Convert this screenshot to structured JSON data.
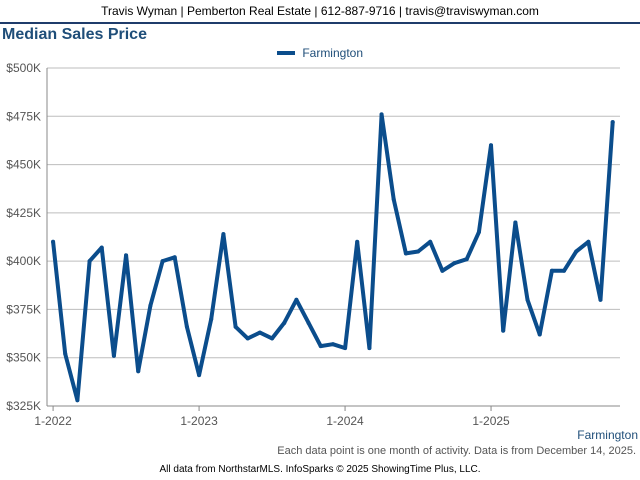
{
  "header": {
    "contact": "Travis Wyman | Pemberton Real Estate | 612-887-9716 | travis@traviswyman.com"
  },
  "footer": {
    "note": "Each data point is one month of activity. Data is from December 14, 2025.",
    "series_tag": "Farmington",
    "source": "All data from NorthstarMLS. InfoSparks © 2025 ShowingTime Plus, LLC."
  },
  "colors": {
    "series": "#0b4d8c",
    "title": "#1f4e79",
    "grid": "#bdbdbd",
    "axis_text": "#555555"
  },
  "chart_data": {
    "type": "line",
    "title": "Median Sales Price",
    "xlabel": "",
    "ylabel": "",
    "legend_position": "top-center",
    "grid": true,
    "ylim": [
      325000,
      500000
    ],
    "y_ticks": [
      325000,
      350000,
      375000,
      400000,
      425000,
      450000,
      475000,
      500000
    ],
    "y_tick_labels": [
      "$325K",
      "$350K",
      "$375K",
      "$400K",
      "$425K",
      "$450K",
      "$475K",
      "$500K"
    ],
    "x_tick_labels": [
      {
        "label": "1-2022",
        "month": "2022-01"
      },
      {
        "label": "1-2023",
        "month": "2023-01"
      },
      {
        "label": "1-2024",
        "month": "2024-01"
      },
      {
        "label": "1-2025",
        "month": "2025-01"
      }
    ],
    "x_range": [
      "2022-01",
      "2025-11"
    ],
    "x": [
      "2022-01",
      "2022-02",
      "2022-03",
      "2022-04",
      "2022-05",
      "2022-06",
      "2022-07",
      "2022-08",
      "2022-09",
      "2022-10",
      "2022-11",
      "2022-12",
      "2023-01",
      "2023-02",
      "2023-03",
      "2023-04",
      "2023-05",
      "2023-06",
      "2023-07",
      "2023-08",
      "2023-09",
      "2023-10",
      "2023-11",
      "2023-12",
      "2024-01",
      "2024-02",
      "2024-03",
      "2024-04",
      "2024-05",
      "2024-06",
      "2024-07",
      "2024-08",
      "2024-09",
      "2024-10",
      "2024-11",
      "2024-12",
      "2025-01",
      "2025-02",
      "2025-03",
      "2025-04",
      "2025-05",
      "2025-06",
      "2025-07",
      "2025-08",
      "2025-09",
      "2025-10",
      "2025-11"
    ],
    "series": [
      {
        "name": "Farmington",
        "values": [
          410000,
          352000,
          328000,
          400000,
          407000,
          351000,
          403000,
          343000,
          377000,
          400000,
          402000,
          366000,
          341000,
          370000,
          414000,
          366000,
          360000,
          363000,
          360000,
          368000,
          380000,
          368000,
          356000,
          357000,
          355000,
          410000,
          355000,
          476000,
          432000,
          404000,
          405000,
          410000,
          395000,
          399000,
          401000,
          415000,
          460000,
          364000,
          420000,
          380000,
          362000,
          395000,
          395000,
          405000,
          410000,
          380000,
          472000
        ]
      }
    ]
  }
}
